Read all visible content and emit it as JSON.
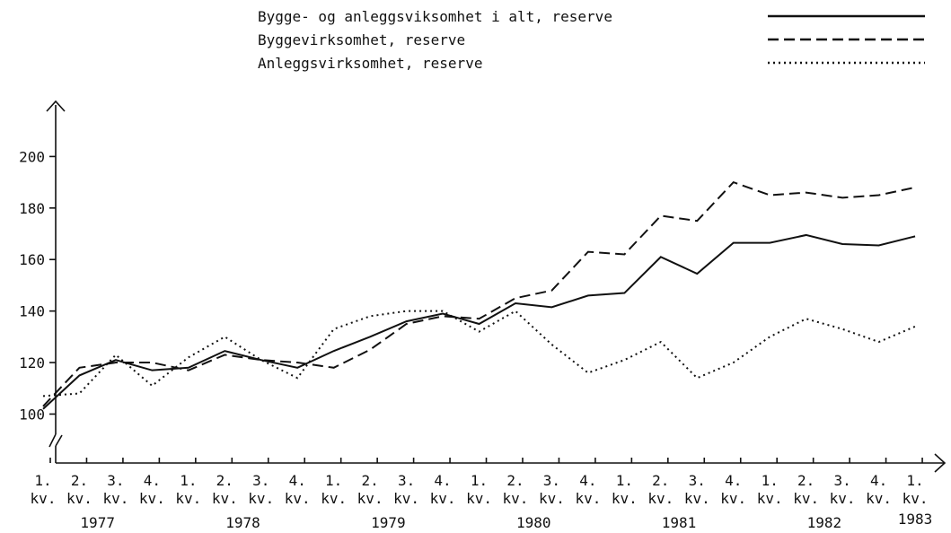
{
  "chart_data": {
    "type": "line",
    "categories": [
      "1. kv.",
      "2. kv.",
      "3. kv.",
      "4. kv.",
      "1. kv.",
      "2. kv.",
      "3. kv.",
      "4. kv.",
      "1. kv.",
      "2. kv.",
      "3. kv.",
      "4. kv.",
      "1. kv.",
      "2. kv.",
      "3. kv.",
      "4. kv.",
      "1. kv.",
      "2. kv.",
      "3. kv.",
      "4. kv.",
      "1. kv.",
      "2. kv.",
      "3. kv.",
      "4. kv.",
      "1. kv."
    ],
    "years": [
      "1977",
      "1978",
      "1979",
      "1980",
      "1981",
      "1982",
      "1983"
    ],
    "series": [
      {
        "name": "Bygge- og anleggsviksomhet i alt, reserve",
        "color": "#111",
        "dash": "solid",
        "values": [
          102,
          115,
          121,
          117,
          118,
          124.5,
          121,
          118,
          124.5,
          130,
          136,
          139,
          135,
          143,
          141.5,
          146,
          147,
          161,
          154.5,
          166.5,
          166.5,
          169.5,
          166,
          165.5,
          169
        ]
      },
      {
        "name": "Byggevirksomhet, reserve",
        "color": "#111",
        "dash": "dashed",
        "values": [
          103,
          118,
          120,
          120,
          117,
          123,
          121,
          120,
          118,
          125,
          135,
          138,
          137,
          145,
          148,
          163,
          162,
          177,
          175,
          190,
          185,
          186,
          184,
          185,
          188
        ]
      },
      {
        "name": "Anleggsvirksomhet, reserve",
        "color": "#111",
        "dash": "dotted",
        "values": [
          107,
          108,
          123,
          111,
          122,
          130,
          121,
          114,
          133,
          138,
          140,
          140,
          132,
          140,
          127,
          116,
          121,
          128,
          114,
          120,
          130,
          137,
          133,
          128,
          134
        ]
      }
    ],
    "ylim": [
      81,
      220
    ],
    "yticks": [
      100,
      120,
      140,
      160,
      180,
      200
    ],
    "grid": false,
    "legend": "top-right"
  }
}
